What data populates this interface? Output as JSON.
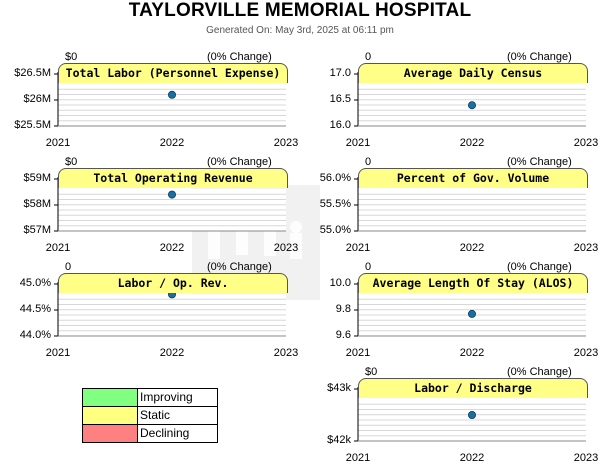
{
  "header": {
    "title": "TAYLORVILLE MEMORIAL HOSPITAL",
    "generated": "Generated On: May 3rd, 2025 at 06:11 pm"
  },
  "colors": {
    "tab_fill": "#ffff88",
    "marker": "#1a6fa0",
    "improving": "#80ff80",
    "static": "#ffff80",
    "declining": "#ff8080"
  },
  "legend": {
    "items": [
      {
        "label": "Improving",
        "color": "#80ff80"
      },
      {
        "label": "Static",
        "color": "#ffff80"
      },
      {
        "label": "Declining",
        "color": "#ff8080"
      }
    ]
  },
  "chart_data": [
    {
      "type": "scatter",
      "title": "Total Labor (Personnel Expense)",
      "header_value": "$0",
      "change": "(0% Change)",
      "x": [
        2022
      ],
      "y": [
        26.1
      ],
      "xlim": [
        2021,
        2023
      ],
      "xticks": [
        "2021",
        "2022",
        "2023"
      ],
      "ylim": [
        25.5,
        26.5
      ],
      "yticks": [
        {
          "v": 26.5,
          "label": "$26.5M"
        },
        {
          "v": 26.0,
          "label": "$26M"
        },
        {
          "v": 25.5,
          "label": "$25.5M"
        }
      ]
    },
    {
      "type": "scatter",
      "title": "Average Daily Census",
      "header_value": "0",
      "change": "(0% Change)",
      "x": [
        2022
      ],
      "y": [
        16.4
      ],
      "xlim": [
        2021,
        2023
      ],
      "xticks": [
        "2021",
        "2022",
        "2023"
      ],
      "ylim": [
        16.0,
        17.0
      ],
      "yticks": [
        {
          "v": 17.0,
          "label": "17.0"
        },
        {
          "v": 16.5,
          "label": "16.5"
        },
        {
          "v": 16.0,
          "label": "16.0"
        }
      ]
    },
    {
      "type": "scatter",
      "title": "Total Operating Revenue",
      "header_value": "$0",
      "change": "(0% Change)",
      "x": [
        2022
      ],
      "y": [
        58.4
      ],
      "xlim": [
        2021,
        2023
      ],
      "xticks": [
        "2021",
        "2022",
        "2023"
      ],
      "ylim": [
        57,
        59
      ],
      "yticks": [
        {
          "v": 59,
          "label": "$59M"
        },
        {
          "v": 58,
          "label": "$58M"
        },
        {
          "v": 57,
          "label": "$57M"
        }
      ]
    },
    {
      "type": "scatter",
      "title": "Percent of Gov. Volume",
      "header_value": "0",
      "change": "(0% Change)",
      "x": [
        2022
      ],
      "y": [
        56.0
      ],
      "xlim": [
        2021,
        2023
      ],
      "xticks": [
        "2021",
        "2022",
        "2023"
      ],
      "ylim": [
        55.0,
        56.0
      ],
      "yticks": [
        {
          "v": 56.0,
          "label": "56.0%"
        },
        {
          "v": 55.5,
          "label": "55.5%"
        },
        {
          "v": 55.0,
          "label": "55.0%"
        }
      ]
    },
    {
      "type": "scatter",
      "title": "Labor / Op. Rev.",
      "header_value": "0",
      "change": "(0% Change)",
      "x": [
        2022
      ],
      "y": [
        44.8
      ],
      "xlim": [
        2021,
        2023
      ],
      "xticks": [
        "2021",
        "2022",
        "2023"
      ],
      "ylim": [
        44.0,
        45.0
      ],
      "yticks": [
        {
          "v": 45.0,
          "label": "45.0%"
        },
        {
          "v": 44.5,
          "label": "44.5%"
        },
        {
          "v": 44.0,
          "label": "44.0%"
        }
      ]
    },
    {
      "type": "scatter",
      "title": "Average Length Of Stay (ALOS)",
      "header_value": "0",
      "change": "(0% Change)",
      "x": [
        2022
      ],
      "y": [
        9.77
      ],
      "xlim": [
        2021,
        2023
      ],
      "xticks": [
        "2021",
        "2022",
        "2023"
      ],
      "ylim": [
        9.6,
        10.0
      ],
      "yticks": [
        {
          "v": 10.0,
          "label": "10.0"
        },
        {
          "v": 9.8,
          "label": "9.8"
        },
        {
          "v": 9.6,
          "label": "9.6"
        }
      ]
    },
    {
      "type": "scatter",
      "title": "Labor / Discharge",
      "header_value": "$0",
      "change": "(0% Change)",
      "x": [
        2022
      ],
      "y": [
        42.5
      ],
      "xlim": [
        2021,
        2023
      ],
      "xticks": [
        "2021",
        "2022",
        "2023"
      ],
      "ylim": [
        42,
        43
      ],
      "yticks": [
        {
          "v": 43,
          "label": "$43k"
        },
        {
          "v": 42,
          "label": "$42k"
        }
      ]
    }
  ]
}
